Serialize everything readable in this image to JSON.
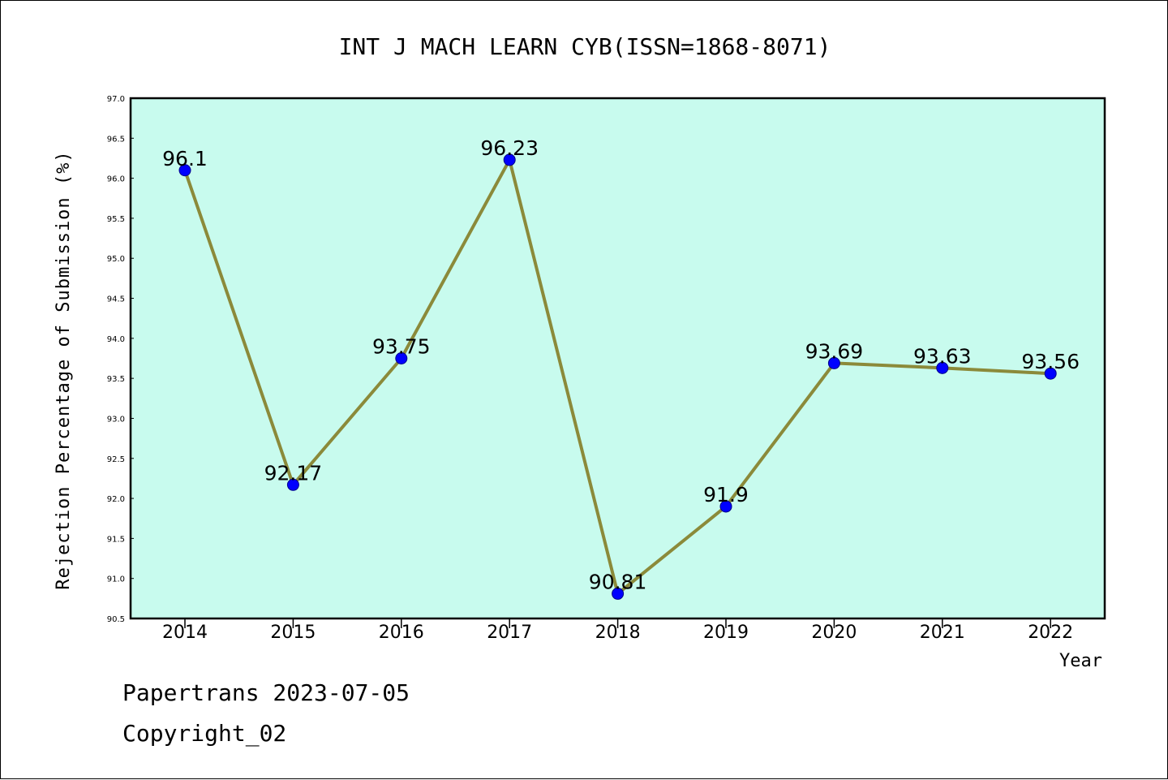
{
  "colors": {
    "plot_background": "#c8fbee",
    "line": "#8b8a3a",
    "marker": "#0000ff",
    "marker_edge": "#00008b",
    "axis": "#000000"
  },
  "chart_data": {
    "type": "line",
    "title": "INT J MACH LEARN CYB(ISSN=1868-8071)",
    "xlabel": "Year",
    "ylabel": "Rejection Percentage of Submission (%)",
    "categories": [
      "2014",
      "2015",
      "2016",
      "2017",
      "2018",
      "2019",
      "2020",
      "2021",
      "2022"
    ],
    "series": [
      {
        "values": [
          96.1,
          92.17,
          93.75,
          96.23,
          90.81,
          91.9,
          93.69,
          93.63,
          93.56
        ],
        "data_labels": [
          "96.1",
          "92.17",
          "93.75",
          "96.23",
          "90.81",
          "91.9",
          "93.69",
          "93.63",
          "93.56"
        ]
      }
    ],
    "ylim": [
      90.5,
      97.0
    ],
    "ytick_labels": [
      "90.5",
      "91.0",
      "91.5",
      "92.0",
      "92.5",
      "93.0",
      "93.5",
      "94.0",
      "94.5",
      "95.0",
      "95.5",
      "96.0",
      "96.5",
      "97.0"
    ],
    "grid": false,
    "legend": "none"
  },
  "footer": {
    "line1": "Papertrans 2023-07-05",
    "line2": "Copyright_02"
  }
}
